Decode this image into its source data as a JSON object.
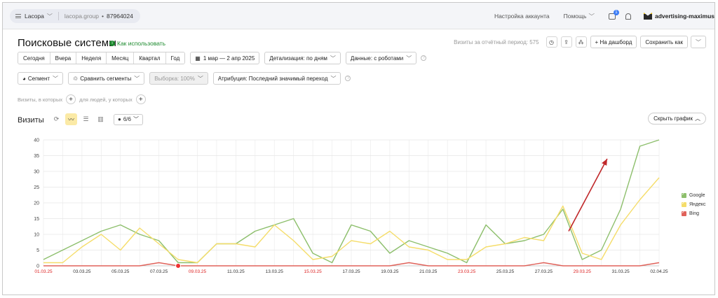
{
  "topbar": {
    "counter_name": "Lacopa",
    "counter_site": "lacopa.group",
    "counter_id": "87964024",
    "account_settings": "Настройка аккаунта",
    "help": "Помощь",
    "notifications_count": "1",
    "account_name": "advertising-maximus"
  },
  "header": {
    "title": "Поисковые системы",
    "how_to_use": "Как использовать",
    "visits_note": "Визиты за отчётный период: 575",
    "add_dashboard": "+ На дашборд",
    "save_as": "Сохранить как"
  },
  "period": {
    "buttons": [
      "Сегодня",
      "Вчера",
      "Неделя",
      "Месяц",
      "Квартал",
      "Год"
    ],
    "date_range": "1 мар — 2 апр 2025",
    "detail": "Детализация: по дням",
    "data": "Данные: с роботами"
  },
  "filters": {
    "segment": "Сегмент",
    "compare": "Сравнить сегменты",
    "sample": "Выборка: 100%",
    "attribution": "Атрибуция: Последний значимый переход"
  },
  "conditions": {
    "visits_where": "Визиты, в которых",
    "for_people": "для людей, у которых"
  },
  "chart_header": {
    "title": "Визиты",
    "series_selector": "6/6",
    "hide_chart": "Скрыть график"
  },
  "colors": {
    "google": "#8dbf6c",
    "yandex": "#f5dd6a",
    "bing": "#e0625a",
    "arrow": "#c0282a"
  },
  "chart_data": {
    "type": "line",
    "x": [
      "01.03.25",
      "02.03.25",
      "03.03.25",
      "04.03.25",
      "05.03.25",
      "06.03.25",
      "07.03.25",
      "08.03.25",
      "09.03.25",
      "10.03.25",
      "11.03.25",
      "12.03.25",
      "13.03.25",
      "14.03.25",
      "15.03.25",
      "16.03.25",
      "17.03.25",
      "18.03.25",
      "19.03.25",
      "20.03.25",
      "21.03.25",
      "22.03.25",
      "23.03.25",
      "24.03.25",
      "25.03.25",
      "26.03.25",
      "27.03.25",
      "28.03.25",
      "29.03.25",
      "30.03.25",
      "31.03.25",
      "01.04.25",
      "02.04.25"
    ],
    "tick_labels": [
      "01.03.25",
      "03.03.25",
      "05.03.25",
      "07.03.25",
      "09.03.25",
      "11.03.25",
      "13.03.25",
      "15.03.25",
      "17.03.25",
      "19.03.25",
      "21.03.25",
      "23.03.25",
      "25.03.25",
      "27.03.25",
      "29.03.25",
      "31.03.25",
      "02.04.25"
    ],
    "weekend_ticks": [
      "01.03.25",
      "09.03.25",
      "15.03.25",
      "23.03.25",
      "29.03.25"
    ],
    "series": [
      {
        "name": "Google",
        "values": [
          2,
          5,
          8,
          11,
          13,
          10,
          8,
          1,
          1,
          7,
          7,
          11,
          13,
          15,
          4,
          1,
          13,
          11,
          4,
          8,
          6,
          4,
          1,
          13,
          7,
          8,
          10,
          18,
          2,
          5,
          18,
          38,
          40
        ]
      },
      {
        "name": "Яндекс",
        "values": [
          1,
          1,
          6,
          10,
          5,
          12,
          7,
          2,
          1,
          7,
          7,
          6,
          13,
          8,
          2,
          3,
          8,
          7,
          11,
          6,
          5,
          2,
          2,
          6,
          7,
          9,
          8,
          19,
          4,
          2,
          13,
          21,
          28
        ]
      },
      {
        "name": "Bing",
        "values": [
          0,
          0,
          0,
          0,
          0,
          0,
          1,
          0,
          0,
          0,
          0,
          0,
          0,
          0,
          0,
          0,
          0,
          0,
          0,
          1,
          0,
          0,
          0,
          0,
          0,
          0,
          1,
          0,
          0,
          0,
          0,
          0,
          1
        ]
      }
    ],
    "ylim": [
      0,
      40
    ],
    "yticks": [
      0,
      5,
      10,
      15,
      20,
      25,
      30,
      35,
      40
    ],
    "grid": true,
    "legend_position": "right",
    "annotation": "arrow pointing up toward rising Google visits"
  }
}
